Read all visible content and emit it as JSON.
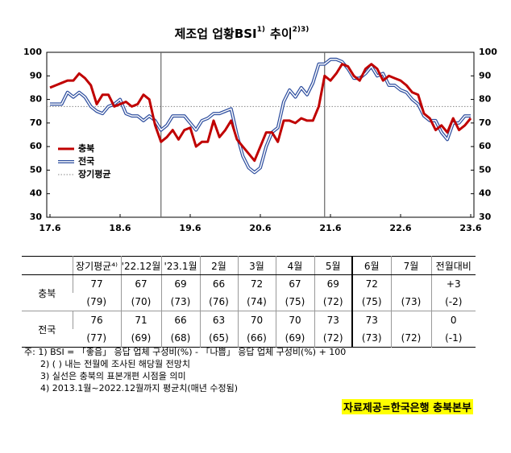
{
  "chart_data": {
    "type": "line",
    "title": "제조업 업황BSI",
    "title_note": "1)",
    "title_suffix": "추이",
    "title_suffix_note": "2)3)",
    "categories": [
      "17.6",
      null,
      null,
      null,
      null,
      null,
      null,
      null,
      null,
      null,
      null,
      null,
      "18.6",
      null,
      null,
      null,
      null,
      null,
      null,
      null,
      null,
      null,
      null,
      null,
      "19.6",
      null,
      null,
      null,
      null,
      null,
      null,
      null,
      null,
      null,
      null,
      null,
      "20.6",
      null,
      null,
      null,
      null,
      null,
      null,
      null,
      null,
      null,
      null,
      null,
      "21.6",
      null,
      null,
      null,
      null,
      null,
      null,
      null,
      null,
      null,
      null,
      null,
      "22.6",
      null,
      null,
      null,
      null,
      null,
      null,
      null,
      null,
      null,
      null,
      null,
      "23.6"
    ],
    "series": [
      {
        "name": "충북",
        "color": "#c00000",
        "values": [
          85,
          86,
          87,
          88,
          88,
          91,
          89,
          86,
          78,
          82,
          82,
          77,
          78,
          79,
          77,
          78,
          82,
          80,
          69,
          62,
          64,
          67,
          63,
          67,
          68,
          60,
          62,
          62,
          71,
          64,
          67,
          71,
          63,
          60,
          57,
          54,
          60,
          66,
          66,
          62,
          71,
          71,
          70,
          72,
          71,
          71,
          77,
          90,
          88,
          91,
          95,
          94,
          90,
          88,
          93,
          95,
          93,
          88,
          90,
          89,
          88,
          86,
          83,
          82,
          74,
          72,
          67,
          69,
          66,
          72,
          67,
          69,
          72
        ]
      },
      {
        "name": "전국",
        "color": "#2f4f9f",
        "values": [
          78,
          78,
          78,
          83,
          81,
          83,
          81,
          77,
          75,
          74,
          77,
          78,
          80,
          74,
          73,
          73,
          71,
          73,
          71,
          67,
          69,
          73,
          73,
          73,
          70,
          67,
          71,
          72,
          74,
          74,
          75,
          76,
          65,
          56,
          51,
          49,
          51,
          60,
          66,
          68,
          79,
          84,
          81,
          85,
          82,
          87,
          95,
          95,
          97,
          97,
          96,
          93,
          89,
          89,
          91,
          94,
          90,
          91,
          86,
          86,
          84,
          83,
          80,
          78,
          73,
          71,
          71,
          66,
          63,
          70,
          70,
          73,
          73
        ]
      }
    ],
    "average": {
      "name": "장기평균",
      "value": 77,
      "color": "#888888"
    },
    "sample_revision_at": [
      19,
      47
    ],
    "ylim": [
      30,
      100
    ],
    "yticks": [
      30,
      40,
      50,
      60,
      70,
      80,
      90,
      100
    ],
    "y2lim": [
      30,
      100
    ],
    "y2ticks": [
      30,
      40,
      50,
      60,
      70,
      80,
      90,
      100
    ]
  },
  "table": {
    "header": [
      "장기평균⁴⁾",
      "'22.12월",
      "'23.1월",
      "2월",
      "3월",
      "4월",
      "5월",
      "6월",
      "7월",
      "전월대비"
    ],
    "rows": [
      {
        "label": "충북",
        "values": [
          "77",
          "67",
          "69",
          "66",
          "72",
          "67",
          "69",
          "72",
          null,
          "+3"
        ],
        "prev": [
          "(79)",
          "(70)",
          "(73)",
          "(76)",
          "(74)",
          "(75)",
          "(72)",
          "(75)",
          "(73)",
          "(-2)"
        ]
      },
      {
        "label": "전국",
        "values": [
          "76",
          "71",
          "66",
          "63",
          "70",
          "70",
          "73",
          "73",
          null,
          "0"
        ],
        "prev": [
          "(77)",
          "(69)",
          "(68)",
          "(65)",
          "(66)",
          "(69)",
          "(72)",
          "(73)",
          "(72)",
          "(-1)"
        ]
      }
    ]
  },
  "notes": [
    "주: 1) BSI = 「좋음」 응답 업체 구성비(%) - 「나쁨」 응답 업체 구성비(%) + 100",
    "2) ( ) 내는 전월에 조사된 해당월 전망치",
    "3) 실선은 충북의 표본개편 시점을 의미",
    "4) 2013.1월~2022.12월까지 평균치(매년 수정됨)"
  ],
  "source": "자료제공=한국은행 충북본부"
}
